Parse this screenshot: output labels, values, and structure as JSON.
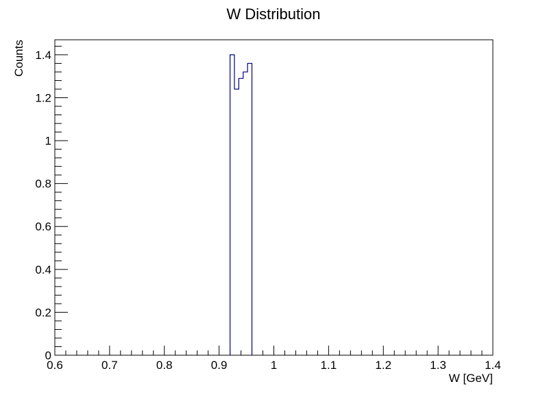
{
  "chart_data": {
    "type": "histogram",
    "title": "W Distribution",
    "xlabel": "W [GeV]",
    "ylabel": "Counts",
    "xlim": [
      0.6,
      1.4
    ],
    "ylim": [
      0,
      1.47
    ],
    "grid": false,
    "line_color": "#000080",
    "x_ticks": [
      {
        "value": 0.6,
        "label": "0.6"
      },
      {
        "value": 0.7,
        "label": "0.7"
      },
      {
        "value": 0.8,
        "label": "0.8"
      },
      {
        "value": 0.9,
        "label": "0.9"
      },
      {
        "value": 1.0,
        "label": "1"
      },
      {
        "value": 1.1,
        "label": "1.1"
      },
      {
        "value": 1.2,
        "label": "1.2"
      },
      {
        "value": 1.3,
        "label": "1.3"
      },
      {
        "value": 1.4,
        "label": "1.4"
      }
    ],
    "y_ticks": [
      {
        "value": 0,
        "label": "0"
      },
      {
        "value": 0.2,
        "label": "0.2"
      },
      {
        "value": 0.4,
        "label": "0.4"
      },
      {
        "value": 0.6,
        "label": "0.6"
      },
      {
        "value": 0.8,
        "label": "0.8"
      },
      {
        "value": 1.0,
        "label": "1"
      },
      {
        "value": 1.2,
        "label": "1.2"
      },
      {
        "value": 1.4,
        "label": "1.4"
      }
    ],
    "bins": [
      {
        "x0": 0.92,
        "x1": 0.928,
        "value": 1.4
      },
      {
        "x0": 0.928,
        "x1": 0.936,
        "value": 1.24
      },
      {
        "x0": 0.936,
        "x1": 0.944,
        "value": 1.29
      },
      {
        "x0": 0.944,
        "x1": 0.952,
        "value": 1.32
      },
      {
        "x0": 0.952,
        "x1": 0.96,
        "value": 1.36
      }
    ]
  }
}
